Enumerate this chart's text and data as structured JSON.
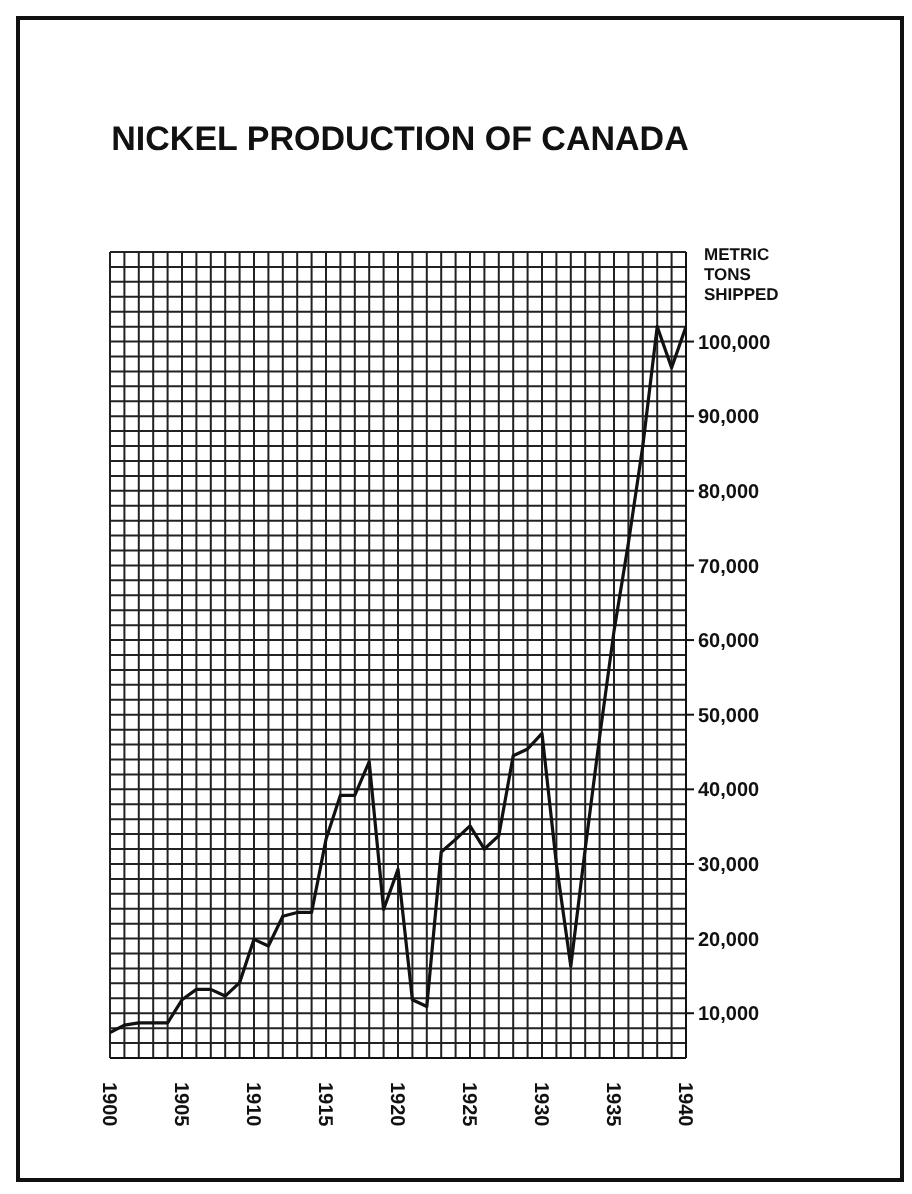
{
  "chart_data": {
    "type": "line",
    "title": "NICKEL PRODUCTION OF CANADA",
    "ylabel": "METRIC TONS SHIPPED",
    "x": [
      1900,
      1901,
      1902,
      1903,
      1904,
      1905,
      1906,
      1907,
      1908,
      1909,
      1910,
      1911,
      1912,
      1913,
      1914,
      1915,
      1916,
      1917,
      1918,
      1919,
      1920,
      1921,
      1922,
      1923,
      1924,
      1925,
      1926,
      1927,
      1928,
      1929,
      1930,
      1931,
      1932,
      1933,
      1934,
      1935,
      1936,
      1937,
      1938,
      1939,
      1940
    ],
    "series": [
      {
        "color": "#111111",
        "values": [
          7400,
          8400,
          8700,
          8700,
          8700,
          11800,
          13200,
          13200,
          12300,
          14100,
          19900,
          19000,
          23000,
          23500,
          23500,
          33300,
          39200,
          39200,
          43700,
          23900,
          29300,
          11800,
          10900,
          31600,
          33300,
          35100,
          32000,
          33800,
          44500,
          45400,
          47500,
          30000,
          16300,
          32000,
          47000,
          61200,
          73000,
          86000,
          102000,
          96500,
          102000
        ]
      }
    ],
    "xlim": [
      1900,
      1940
    ],
    "xticks": [
      1900,
      1905,
      1910,
      1915,
      1920,
      1925,
      1930,
      1935,
      1940
    ],
    "ylim": [
      4000,
      112000
    ],
    "yticks": [
      {
        "value": 10000,
        "label": "10,000"
      },
      {
        "value": 20000,
        "label": "20,000"
      },
      {
        "value": 30000,
        "label": "30,000"
      },
      {
        "value": 40000,
        "label": "40,000"
      },
      {
        "value": 50000,
        "label": "50,000"
      },
      {
        "value": 60000,
        "label": "60,000"
      },
      {
        "value": 70000,
        "label": "70,000"
      },
      {
        "value": 80000,
        "label": "80,000"
      },
      {
        "value": 90000,
        "label": "90,000"
      },
      {
        "value": 100000,
        "label": "100,000"
      }
    ],
    "grid": true,
    "legend": false
  }
}
